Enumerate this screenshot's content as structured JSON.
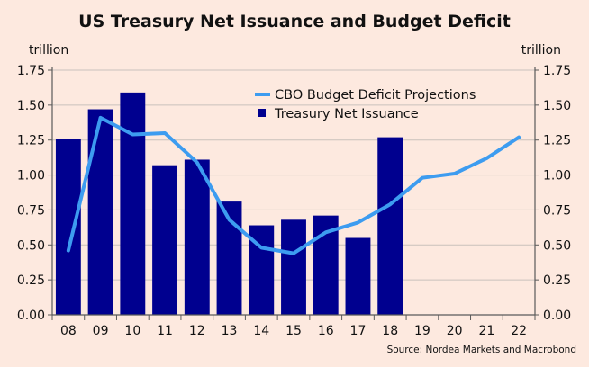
{
  "chart_data": {
    "type": "bar",
    "title": "US Treasury Net Issuance and Budget Deficit",
    "left_axis_label": "trillion",
    "right_axis_label": "trillion",
    "source": "Source: Nordea Markets and Macrobond",
    "categories": [
      "08",
      "09",
      "10",
      "11",
      "12",
      "13",
      "14",
      "15",
      "16",
      "17",
      "18",
      "19",
      "20",
      "21",
      "22"
    ],
    "ylim": [
      0,
      1.75
    ],
    "yticks": [
      "0.00",
      "0.25",
      "0.50",
      "0.75",
      "1.00",
      "1.25",
      "1.50",
      "1.75"
    ],
    "ytick_values": [
      0,
      0.25,
      0.5,
      0.75,
      1.0,
      1.25,
      1.5,
      1.75
    ],
    "series": [
      {
        "name": "Treasury Net Issuance",
        "kind": "bar",
        "color": "#00008f",
        "values": [
          1.26,
          1.47,
          1.59,
          1.07,
          1.11,
          0.81,
          0.64,
          0.68,
          0.71,
          0.55,
          1.27,
          null,
          null,
          null,
          null
        ]
      },
      {
        "name": "CBO Budget Deficit Projections",
        "kind": "line",
        "color": "#3d9cf0",
        "values": [
          0.46,
          1.41,
          1.29,
          1.3,
          1.09,
          0.68,
          0.48,
          0.44,
          0.59,
          0.66,
          0.79,
          0.98,
          1.01,
          1.12,
          1.27
        ]
      }
    ],
    "legend": [
      {
        "label": "CBO Budget Deficit Projections",
        "marker": "line",
        "color": "#3d9cf0"
      },
      {
        "label": "Treasury Net Issuance",
        "marker": "square",
        "color": "#00008f"
      }
    ]
  }
}
